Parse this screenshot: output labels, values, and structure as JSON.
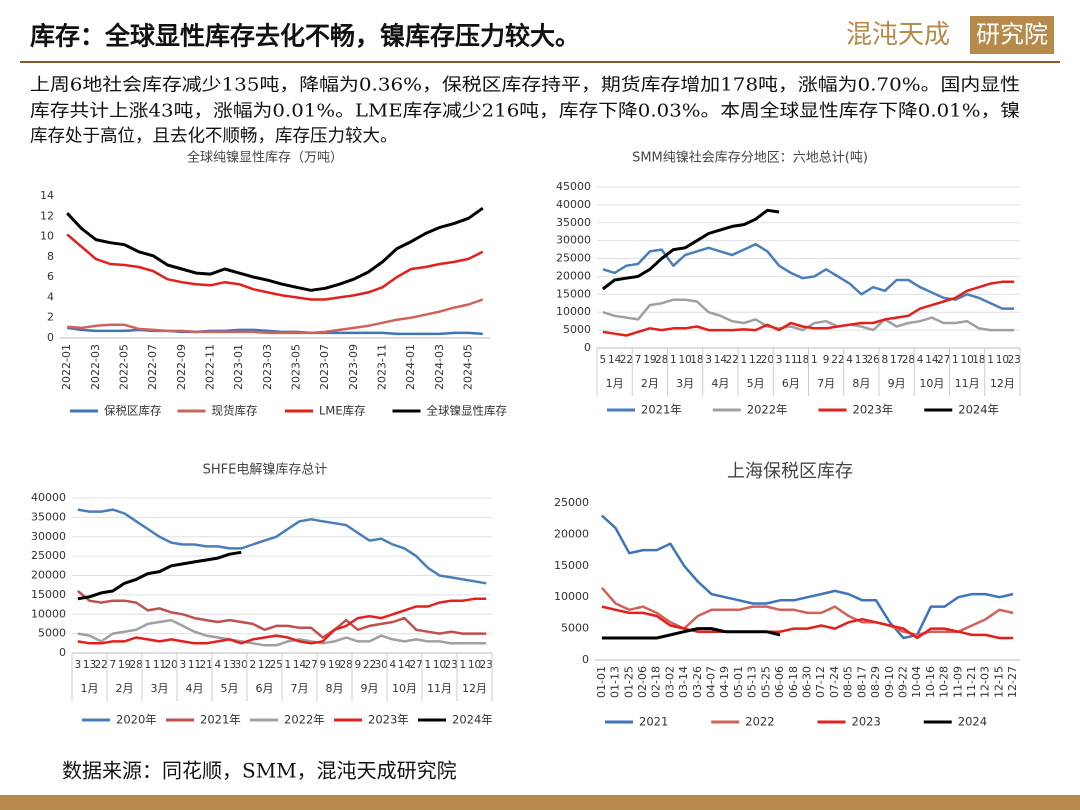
{
  "header": {
    "title": "库存：全球显性库存去化不畅，镍库存压力较大。",
    "logo": {
      "name": "混沌天成",
      "box": "研究院"
    }
  },
  "summary": [
    "上周6地社会库存减少135吨，降幅为0.36%，保税区库存持平，期货库存增加178吨，涨幅为0.70%。国内显性",
    "库存共计上涨43吨，涨幅为0.01%。LME库存减少216吨，库存下降0.03%。本周全球显性库存下降0.01%，镍",
    "库存处于高位，且去化不顺畅，库存压力较大。"
  ],
  "source": "数据来源：同花顺，SMM，混沌天成研究院",
  "chart_data": [
    {
      "type": "line",
      "title": "全球纯镍显性库存（万吨）",
      "legend": "bottom",
      "grid": false,
      "categories": [
        "2022-01",
        null,
        "2022-03",
        null,
        "2022-05",
        null,
        "2022-07",
        null,
        "2022-09",
        null,
        "2022-11",
        null,
        "2023-01",
        null,
        "2023-03",
        null,
        "2023-05",
        null,
        "2023-07",
        null,
        "2023-09",
        null,
        "2023-11",
        null,
        "2024-01",
        null,
        "2024-03",
        null,
        "2024-05",
        null
      ],
      "ylim": [
        0,
        14
      ],
      "yticks": [
        0,
        2,
        4,
        6,
        8,
        10,
        12,
        14
      ],
      "series": [
        {
          "name": "保税区库存",
          "color": "#3f74b9",
          "values": [
            1.0,
            0.8,
            0.7,
            0.7,
            0.7,
            0.8,
            0.7,
            0.7,
            0.6,
            0.6,
            0.7,
            0.7,
            0.8,
            0.8,
            0.7,
            0.6,
            0.6,
            0.5,
            0.5,
            0.5,
            0.5,
            0.5,
            0.5,
            0.4,
            0.4,
            0.4,
            0.4,
            0.5,
            0.5,
            0.4
          ]
        },
        {
          "name": "现货库存",
          "color": "#d0625a",
          "values": [
            1.1,
            1.0,
            1.2,
            1.3,
            1.3,
            0.9,
            0.8,
            0.7,
            0.7,
            0.6,
            0.6,
            0.6,
            0.6,
            0.6,
            0.5,
            0.5,
            0.5,
            0.5,
            0.6,
            0.8,
            1.0,
            1.2,
            1.5,
            1.8,
            2.0,
            2.3,
            2.6,
            3.0,
            3.3,
            3.8
          ]
        },
        {
          "name": "LME库存",
          "color": "#e3201b",
          "values": [
            10.2,
            9.0,
            7.8,
            7.3,
            7.2,
            7.0,
            6.6,
            5.8,
            5.5,
            5.3,
            5.2,
            5.5,
            5.3,
            4.8,
            4.5,
            4.2,
            4.0,
            3.8,
            3.8,
            4.0,
            4.2,
            4.5,
            5.0,
            6.0,
            6.8,
            7.0,
            7.3,
            7.5,
            7.8,
            8.5
          ]
        },
        {
          "name": "全球镍显性库存",
          "color": "#000000",
          "values": [
            12.3,
            10.8,
            9.7,
            9.4,
            9.2,
            8.5,
            8.1,
            7.2,
            6.8,
            6.4,
            6.3,
            6.8,
            6.4,
            6.0,
            5.7,
            5.3,
            5.0,
            4.7,
            4.9,
            5.3,
            5.8,
            6.5,
            7.5,
            8.8,
            9.5,
            10.3,
            10.9,
            11.3,
            11.8,
            12.8
          ]
        }
      ]
    },
    {
      "type": "line",
      "title": "SMM纯镍社会库存分地区：六地总计(吨)",
      "legend": "bottom",
      "grid": true,
      "categories": [
        "5",
        "14",
        "22",
        "7",
        "19",
        "28",
        "1",
        "10",
        "18",
        "3",
        "14",
        "22",
        "1",
        "12",
        "20",
        "3",
        "11",
        "18",
        "1",
        "9",
        "22",
        "4",
        "13",
        "26",
        "8",
        "17",
        "28",
        "4",
        "14",
        "27",
        "1",
        "10",
        "18",
        "1",
        "10",
        "23"
      ],
      "months": [
        "1月",
        "2月",
        "3月",
        "4月",
        "5月",
        "6月",
        "7月",
        "8月",
        "9月",
        "10月",
        "11月",
        "12月"
      ],
      "ylim": [
        0,
        45000
      ],
      "yticks": [
        0,
        5000,
        10000,
        15000,
        20000,
        25000,
        30000,
        35000,
        40000,
        45000
      ],
      "series": [
        {
          "name": "2021年",
          "color": "#4a7ebb",
          "values": [
            22000,
            21000,
            23000,
            23500,
            27000,
            27500,
            23000,
            26000,
            27000,
            28000,
            27000,
            26000,
            27500,
            29000,
            27000,
            23000,
            21000,
            19500,
            20000,
            22000,
            20000,
            18000,
            15000,
            17000,
            16000,
            19000,
            19000,
            17000,
            15500,
            14000,
            13500,
            15000,
            14000,
            12500,
            11000,
            11000
          ]
        },
        {
          "name": "2022年",
          "color": "#a0a0a0",
          "values": [
            10000,
            9000,
            8500,
            8000,
            12000,
            12500,
            13500,
            13500,
            13000,
            10000,
            9000,
            7500,
            7000,
            8000,
            6000,
            5500,
            6000,
            5000,
            7000,
            7500,
            6000,
            6500,
            6000,
            5000,
            8000,
            6000,
            7000,
            7500,
            8500,
            7000,
            7000,
            7500,
            5500,
            5000,
            5000,
            5000
          ]
        },
        {
          "name": "2023年",
          "color": "#e3201b",
          "values": [
            4500,
            4000,
            3500,
            4500,
            5500,
            5000,
            5500,
            5500,
            6000,
            5000,
            5000,
            5000,
            5200,
            5000,
            6500,
            5000,
            7000,
            6000,
            5500,
            5500,
            6000,
            6500,
            7000,
            7000,
            8000,
            8500,
            9000,
            11000,
            12000,
            13000,
            14000,
            16000,
            17000,
            18000,
            18500,
            18500
          ]
        },
        {
          "name": "2024年",
          "color": "#000000",
          "values": [
            16500,
            19000,
            19500,
            20000,
            22000,
            25000,
            27500,
            28000,
            30000,
            32000,
            33000,
            34000,
            34500,
            36000,
            38500,
            38000,
            null,
            null,
            null,
            null,
            null,
            null,
            null,
            null,
            null,
            null,
            null,
            null,
            null,
            null,
            null,
            null,
            null,
            null,
            null,
            null
          ]
        }
      ]
    },
    {
      "type": "line",
      "title": "SHFE电解镍库存总计",
      "legend": "bottom",
      "grid": true,
      "categories": [
        "3",
        "13",
        "22",
        "7",
        "19",
        "28",
        "1",
        "11",
        "20",
        "3",
        "11",
        "21",
        "4",
        "13",
        "30",
        "2",
        "12",
        "25",
        "1",
        "14",
        "27",
        "9",
        "19",
        "28",
        "9",
        "22",
        "30",
        "4",
        "14",
        "27",
        "1",
        "10",
        "23",
        "1",
        "10",
        "23"
      ],
      "months": [
        "1月",
        "2月",
        "3月",
        "4月",
        "5月",
        "6月",
        "7月",
        "8月",
        "9月",
        "10月",
        "11月",
        "12月"
      ],
      "ylim": [
        0,
        40000
      ],
      "yticks": [
        0,
        5000,
        10000,
        15000,
        20000,
        25000,
        30000,
        35000,
        40000
      ],
      "series": [
        {
          "name": "2020年",
          "color": "#4a7ebb",
          "values": [
            37000,
            36500,
            36500,
            37000,
            36000,
            34000,
            32000,
            30000,
            28500,
            28000,
            28000,
            27500,
            27500,
            27000,
            27000,
            28000,
            29000,
            30000,
            32000,
            34000,
            34500,
            34000,
            33500,
            33000,
            31000,
            29000,
            29500,
            28000,
            27000,
            25000,
            22000,
            20000,
            19500,
            19000,
            18500,
            18000
          ]
        },
        {
          "name": "2021年",
          "color": "#c0504d",
          "values": [
            16000,
            13500,
            13000,
            13500,
            13500,
            13000,
            11000,
            11500,
            10500,
            10000,
            9000,
            8500,
            8000,
            8500,
            8000,
            7500,
            6000,
            7000,
            7000,
            6500,
            6500,
            4000,
            6000,
            8500,
            6000,
            7000,
            7500,
            8000,
            9000,
            6000,
            5500,
            5000,
            5500,
            5000,
            5000,
            5000
          ]
        },
        {
          "name": "2022年",
          "color": "#a0a0a0",
          "values": [
            5000,
            4500,
            3000,
            5000,
            5500,
            6000,
            7500,
            8000,
            8500,
            7000,
            5500,
            4500,
            4000,
            3500,
            3000,
            2500,
            2000,
            2000,
            3000,
            3500,
            3000,
            2500,
            3000,
            4000,
            3000,
            3000,
            4500,
            3500,
            3000,
            3500,
            3000,
            3000,
            2500,
            2500,
            2500,
            2500
          ]
        },
        {
          "name": "2023年",
          "color": "#e3201b",
          "values": [
            3000,
            2500,
            2500,
            3000,
            3000,
            4000,
            3500,
            3000,
            3500,
            3000,
            2500,
            2500,
            3000,
            3500,
            2500,
            3500,
            4000,
            4500,
            4000,
            3000,
            2500,
            3000,
            6000,
            7000,
            9000,
            9500,
            9000,
            10000,
            11000,
            12000,
            12000,
            13000,
            13500,
            13500,
            14000,
            14000
          ]
        },
        {
          "name": "2024年",
          "color": "#000000",
          "values": [
            14000,
            14500,
            15500,
            16000,
            18000,
            19000,
            20500,
            21000,
            22500,
            23000,
            23500,
            24000,
            24500,
            25500,
            26000,
            null,
            null,
            null,
            null,
            null,
            null,
            null,
            null,
            null,
            null,
            null,
            null,
            null,
            null,
            null,
            null,
            null,
            null,
            null,
            null,
            null
          ]
        }
      ]
    },
    {
      "type": "line",
      "title": "上海保税区库存",
      "legend": "bottom",
      "grid": false,
      "categories": [
        "01-01",
        "01-13",
        "01-25",
        "02-06",
        "02-18",
        "03-02",
        "03-14",
        "03-26",
        "04-07",
        "04-19",
        "05-01",
        "05-13",
        "05-25",
        "06-06",
        "06-18",
        "06-30",
        "07-12",
        "07-24",
        "08-05",
        "08-17",
        "08-29",
        "09-10",
        "09-22",
        "10-04",
        "10-16",
        "10-28",
        "11-09",
        "11-21",
        "12-03",
        "12-15",
        "12-27"
      ],
      "ylim": [
        0,
        25000
      ],
      "yticks": [
        0,
        5000,
        10000,
        15000,
        20000,
        25000
      ],
      "series": [
        {
          "name": "2021",
          "color": "#3f74b9",
          "values": [
            23000,
            21000,
            17000,
            17500,
            17500,
            18500,
            15000,
            12500,
            10500,
            10000,
            9500,
            9000,
            9000,
            9500,
            9500,
            10000,
            10500,
            11000,
            10500,
            9500,
            9500,
            6000,
            3500,
            4000,
            8500,
            8500,
            10000,
            10500,
            10500,
            10000,
            10500
          ]
        },
        {
          "name": "2022",
          "color": "#d0625a",
          "values": [
            11500,
            9000,
            8000,
            8500,
            7500,
            6000,
            5000,
            7000,
            8000,
            8000,
            8000,
            8500,
            8500,
            8000,
            8000,
            7500,
            7500,
            8500,
            7000,
            6000,
            6000,
            5500,
            4500,
            4000,
            4500,
            4500,
            4500,
            5500,
            6500,
            8000,
            7500
          ]
        },
        {
          "name": "2023",
          "color": "#e3201b",
          "values": [
            8500,
            8000,
            7500,
            7500,
            7000,
            5500,
            5000,
            4500,
            4500,
            4500,
            4500,
            4500,
            4500,
            4500,
            5000,
            5000,
            5500,
            5000,
            6000,
            6500,
            6000,
            5500,
            5000,
            3500,
            5000,
            5000,
            4500,
            4000,
            4000,
            3500,
            3500
          ]
        },
        {
          "name": "2024",
          "color": "#000000",
          "values": [
            3500,
            3500,
            3500,
            3500,
            3500,
            4000,
            4500,
            5000,
            5000,
            4500,
            4500,
            4500,
            4500,
            4000,
            null,
            null,
            null,
            null,
            null,
            null,
            null,
            null,
            null,
            null,
            null,
            null,
            null,
            null,
            null,
            null,
            null
          ]
        }
      ]
    }
  ]
}
